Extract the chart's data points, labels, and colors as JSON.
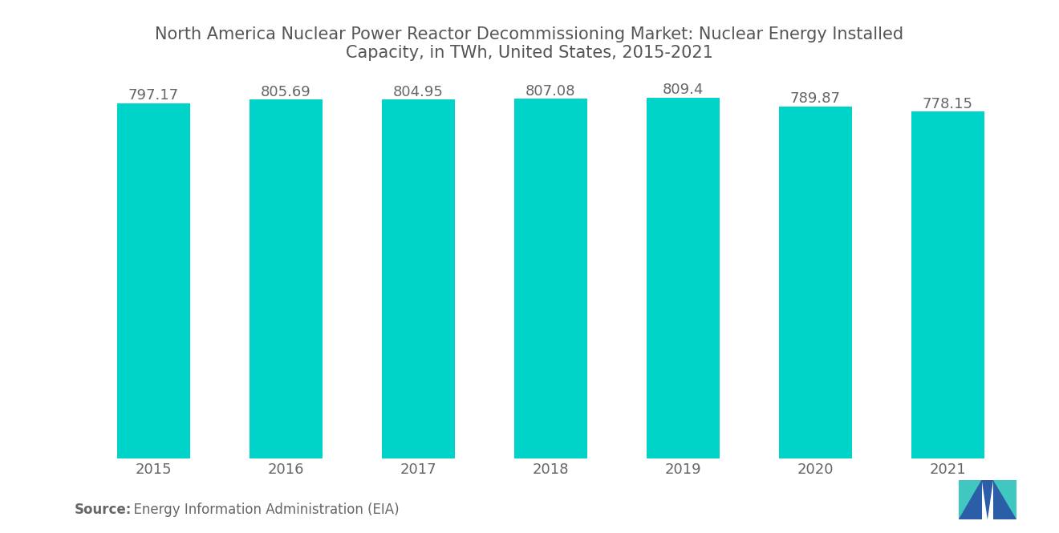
{
  "title": "North America Nuclear Power Reactor Decommissioning Market: Nuclear Energy Installed\nCapacity, in TWh, United States, 2015-2021",
  "categories": [
    "2015",
    "2016",
    "2017",
    "2018",
    "2019",
    "2020",
    "2021"
  ],
  "values": [
    797.17,
    805.69,
    804.95,
    807.08,
    809.4,
    789.87,
    778.15
  ],
  "bar_color": "#00D4C8",
  "background_color": "#ffffff",
  "title_color": "#555555",
  "label_color": "#666666",
  "source_bold": "Source:",
  "source_rest": "  Energy Information Administration (EIA)",
  "ylim_min": 750,
  "ylim_max": 825,
  "title_fontsize": 15,
  "bar_label_fontsize": 13,
  "tick_fontsize": 13,
  "source_fontsize": 12,
  "bar_width": 0.55,
  "logo_blue": "#2B5EA7",
  "logo_teal": "#40C8C0"
}
